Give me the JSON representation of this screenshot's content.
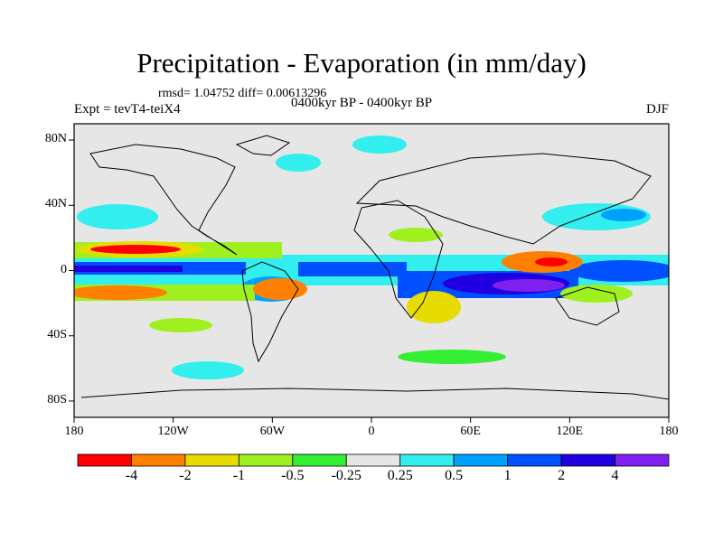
{
  "figure": {
    "title": "Precipitation - Evaporation (in mm/day)",
    "stats": "rmsd= 1.04752 diff= 0.00613296",
    "subtitle": "0400kyr BP - 0400kyr BP",
    "experiment": "Expt = tevT4-teiX4",
    "season": "DJF"
  },
  "map": {
    "projection": "cylindrical-equidistant",
    "lon_range": [
      -180,
      180
    ],
    "lat_range": [
      -90,
      90
    ],
    "background_color": "#e6e6e6",
    "lat_ticks": [
      {
        "value": 80,
        "label": "80N"
      },
      {
        "value": 40,
        "label": "40N"
      },
      {
        "value": 0,
        "label": "0"
      },
      {
        "value": -40,
        "label": "40S"
      },
      {
        "value": -80,
        "label": "80S"
      }
    ],
    "lon_ticks": [
      {
        "value": -180,
        "label": "180"
      },
      {
        "value": -120,
        "label": "120W"
      },
      {
        "value": -60,
        "label": "60W"
      },
      {
        "value": 0,
        "label": "0"
      },
      {
        "value": 60,
        "label": "60E"
      },
      {
        "value": 120,
        "label": "120E"
      },
      {
        "value": 180,
        "label": "180"
      }
    ]
  },
  "colorbar": {
    "colors": [
      "#ff0000",
      "#ff8000",
      "#e6dc00",
      "#a0f020",
      "#33ee33",
      "#e6e6e6",
      "#33eeee",
      "#00a0ff",
      "#0050ff",
      "#2000e0",
      "#8020f0"
    ],
    "labels": [
      "-4",
      "-2",
      "-1",
      "-0.5",
      "-0.25",
      "0.25",
      "0.5",
      "1",
      "2",
      "4"
    ]
  }
}
